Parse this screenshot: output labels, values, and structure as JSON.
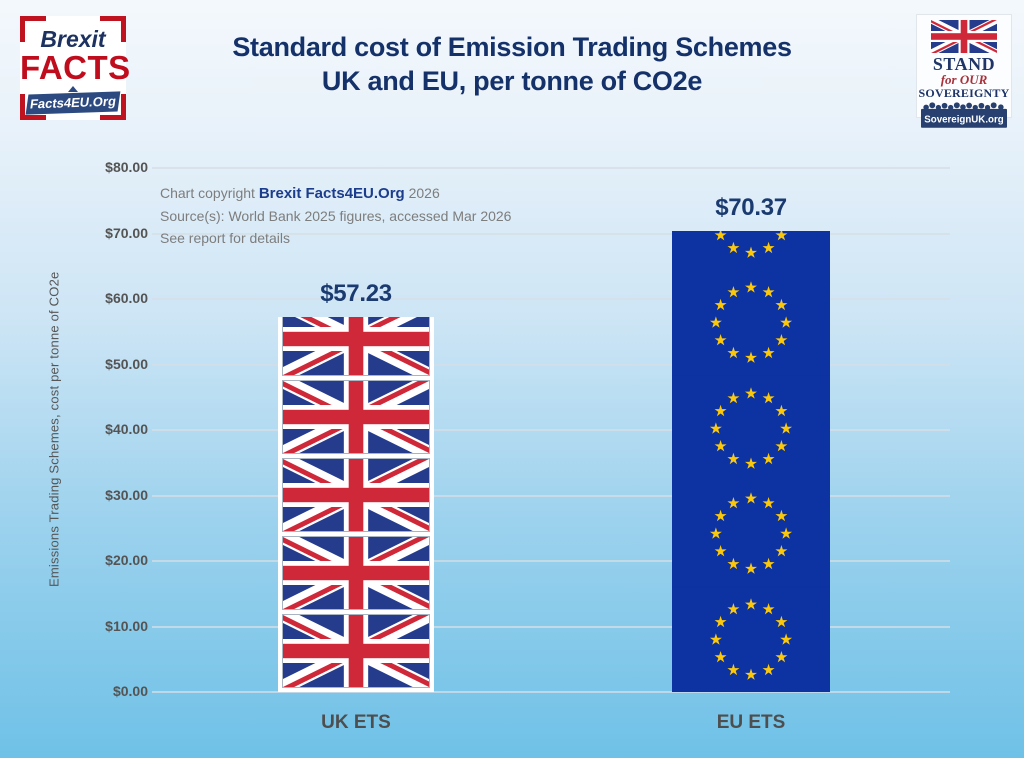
{
  "header": {
    "title_line1": "Standard cost of Emission Trading Schemes",
    "title_line2": "UK and EU, per tonne of CO2e"
  },
  "logo_left": {
    "word1": "Brexit",
    "word2": "FACTS",
    "banner": "Facts4EU.Org"
  },
  "logo_right": {
    "line1": "STAND",
    "line2": "for OUR",
    "line3": "SOVEREIGNTY",
    "banner": "SovereignUK.org"
  },
  "annotation": {
    "line1_prefix": "Chart copyright ",
    "line1_brand": "Brexit Facts4EU.Org",
    "line1_suffix": " 2026",
    "line2": "Source(s): World Bank 2025 figures, accessed Mar 2026",
    "line3": "See report for details"
  },
  "chart_data": {
    "type": "bar",
    "title": "Standard cost of Emission Trading Schemes UK and EU, per tonne of CO2e",
    "categories": [
      "UK ETS",
      "EU ETS"
    ],
    "values": [
      57.23,
      70.37
    ],
    "value_labels": [
      "$57.23",
      "$70.37"
    ],
    "ylabel": "Emissions Trading Schemes, cost per tonne of CO2e",
    "xlabel": "",
    "ylim": [
      0,
      80
    ],
    "y_ticks": [
      "$0.00",
      "$10.00",
      "$20.00",
      "$30.00",
      "$40.00",
      "$50.00",
      "$60.00",
      "$70.00",
      "$80.00"
    ],
    "grid": true,
    "legend": false,
    "bar_fill_note": "UK bar filled with stacked Union Jack flags; EU bar filled with stacked EU flags"
  },
  "colors": {
    "title_navy": "#143169",
    "value_label_navy": "#1a3a70",
    "axis_gray": "#545454",
    "annotation_gray": "#7d7d7d",
    "uk_flag_blue": "#253c8d",
    "uk_flag_red": "#cf2838",
    "eu_flag_blue": "#0d32a2",
    "eu_star_gold": "#fcc80c",
    "background_top": "#f3f8fc",
    "background_bottom": "#6fc1e7"
  }
}
